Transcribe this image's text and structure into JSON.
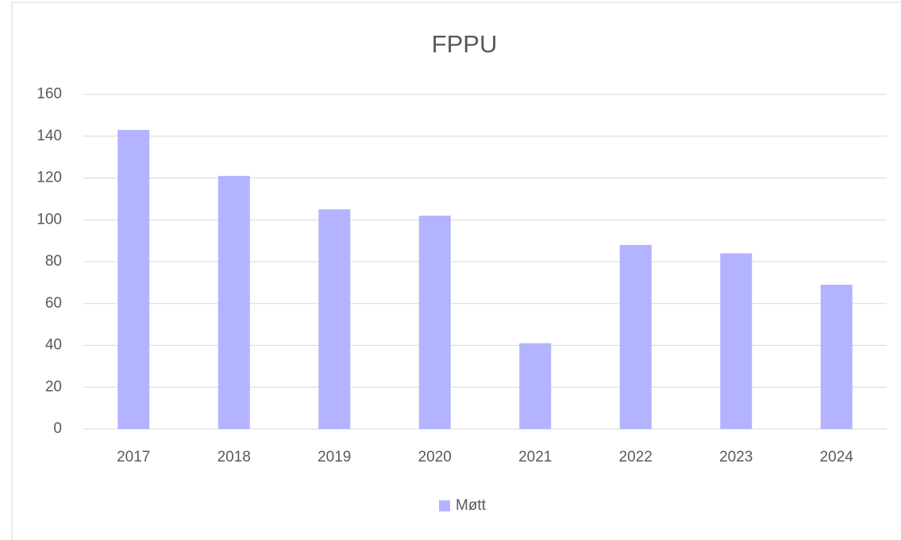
{
  "chart_data": {
    "type": "bar",
    "title": "FPPU",
    "categories": [
      "2017",
      "2018",
      "2019",
      "2020",
      "2021",
      "2022",
      "2023",
      "2024"
    ],
    "series": [
      {
        "name": "Møtt",
        "color": "#b3b3ff",
        "values": [
          143,
          121,
          105,
          102,
          41,
          88,
          84,
          69
        ]
      }
    ],
    "ylim": [
      0,
      160
    ],
    "yticks": [
      0,
      20,
      40,
      60,
      80,
      100,
      120,
      140,
      160
    ],
    "grid": true,
    "legend": "bottom"
  }
}
